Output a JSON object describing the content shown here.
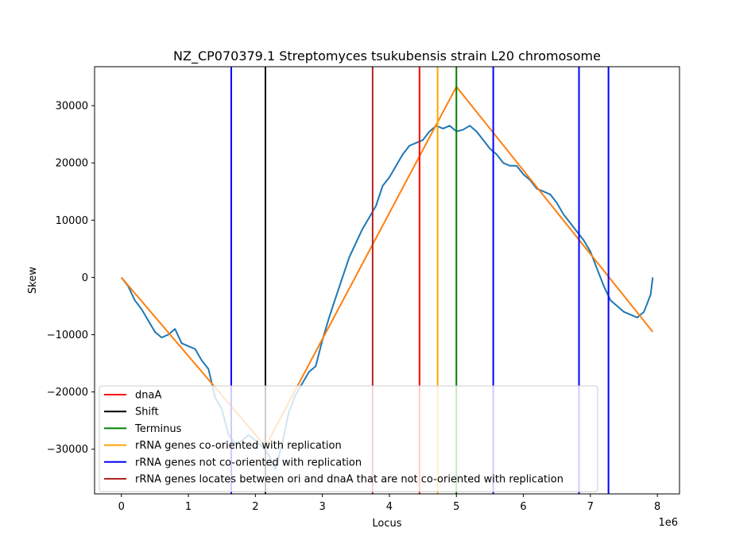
{
  "chart_data": {
    "type": "line",
    "title": "NZ_CP070379.1 Streptomyces tsukubensis strain L20 chromosome",
    "xlabel": "Locus",
    "ylabel": "Skew",
    "x_offset_text": "1e6",
    "xlim": [
      -0.4,
      8.33
    ],
    "ylim": [
      -37800,
      36800
    ],
    "x_ticks": [
      0,
      1,
      2,
      3,
      4,
      5,
      6,
      7,
      8
    ],
    "x_tick_labels": [
      "0",
      "1",
      "2",
      "3",
      "4",
      "5",
      "6",
      "7",
      "8"
    ],
    "y_ticks": [
      -30000,
      -20000,
      -10000,
      0,
      10000,
      20000,
      30000
    ],
    "y_tick_labels": [
      "−30000",
      "−20000",
      "−10000",
      "0",
      "10000",
      "20000",
      "30000"
    ],
    "grid": false,
    "legend_position": "lower-left",
    "skew_series": {
      "color": "#1f77b4",
      "x": [
        0,
        0.1,
        0.2,
        0.3,
        0.4,
        0.5,
        0.6,
        0.7,
        0.8,
        0.9,
        1.0,
        1.1,
        1.2,
        1.3,
        1.4,
        1.5,
        1.6,
        1.7,
        1.8,
        1.9,
        2.0,
        2.1,
        2.2,
        2.3,
        2.4,
        2.5,
        2.6,
        2.7,
        2.8,
        2.9,
        3.0,
        3.1,
        3.2,
        3.3,
        3.4,
        3.5,
        3.6,
        3.7,
        3.8,
        3.9,
        4.0,
        4.1,
        4.2,
        4.3,
        4.4,
        4.5,
        4.6,
        4.7,
        4.8,
        4.9,
        5.0,
        5.1,
        5.2,
        5.3,
        5.4,
        5.5,
        5.6,
        5.7,
        5.8,
        5.9,
        6.0,
        6.1,
        6.2,
        6.3,
        6.4,
        6.5,
        6.6,
        6.7,
        6.8,
        6.9,
        7.0,
        7.1,
        7.2,
        7.3,
        7.4,
        7.5,
        7.6,
        7.7,
        7.8,
        7.9,
        7.93
      ],
      "y": [
        0,
        -1500,
        -4000,
        -5500,
        -7500,
        -9500,
        -10500,
        -10000,
        -9000,
        -11500,
        -12000,
        -12500,
        -14500,
        -16000,
        -21000,
        -23000,
        -27500,
        -29000,
        -28500,
        -27500,
        -28500,
        -29500,
        -31000,
        -33500,
        -29000,
        -23500,
        -20500,
        -18500,
        -16500,
        -15500,
        -11000,
        -7000,
        -3500,
        0,
        3500,
        6000,
        8500,
        10500,
        12500,
        16000,
        17500,
        19500,
        21500,
        23000,
        23500,
        24000,
        25500,
        26500,
        26000,
        26500,
        25500,
        25800,
        26500,
        25500,
        24000,
        22500,
        21500,
        20000,
        19500,
        19500,
        18000,
        17000,
        15500,
        15000,
        14500,
        13000,
        11000,
        9500,
        8000,
        6500,
        4500,
        1500,
        -1500,
        -4000,
        -5000,
        -6000,
        -6500,
        -7000,
        -6000,
        -3000,
        0
      ]
    },
    "fit_series": {
      "color": "#ff7f0e",
      "x": [
        0,
        2.15,
        5.0,
        7.93
      ],
      "y": [
        0,
        -29500,
        33300,
        -9500
      ]
    },
    "vlines": [
      {
        "x": 1.64,
        "color": "#0000ff"
      },
      {
        "x": 2.15,
        "color": "#000000"
      },
      {
        "x": 3.75,
        "color": "#b22222"
      },
      {
        "x": 4.45,
        "color": "#ff0000"
      },
      {
        "x": 4.72,
        "color": "#ffa500"
      },
      {
        "x": 5.0,
        "color": "#008000"
      },
      {
        "x": 5.55,
        "color": "#0000ff"
      },
      {
        "x": 6.83,
        "color": "#0000ff"
      },
      {
        "x": 7.27,
        "color": "#0000ff"
      }
    ],
    "legend": [
      {
        "label": "dnaA",
        "color": "#ff0000"
      },
      {
        "label": "Shift",
        "color": "#000000"
      },
      {
        "label": "Terminus",
        "color": "#008000"
      },
      {
        "label": "rRNA genes co-oriented with replication",
        "color": "#ffa500"
      },
      {
        "label": "rRNA genes not co-oriented with replication",
        "color": "#0000ff"
      },
      {
        "label": "rRNA genes locates between ori and dnaA that are not co-oriented with replication",
        "color": "#b22222"
      }
    ]
  }
}
